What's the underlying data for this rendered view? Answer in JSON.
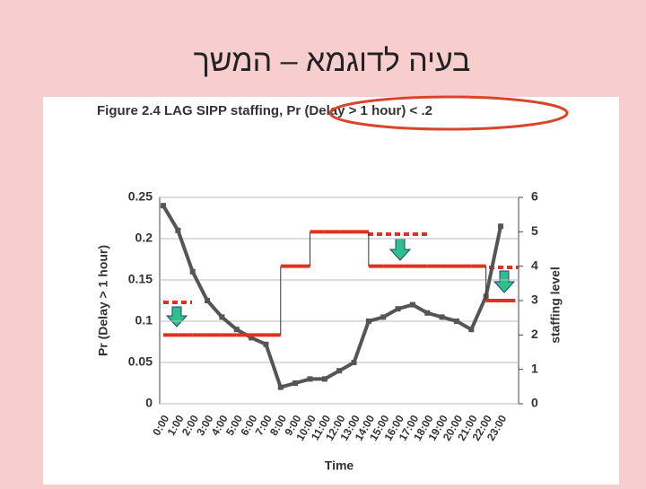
{
  "slide_title": "בעיה לדוגמא – המשך",
  "chart_data": {
    "type": "line",
    "title": "Figure 2.4  LAG SIPP staffing, Pr (Delay > 1 hour) < .2",
    "x_label": "Time",
    "y_label": "Pr (Delay > 1 hour)",
    "y2_label": "staffing level",
    "categories": [
      "0:00",
      "1:00",
      "2:00",
      "3:00",
      "4:00",
      "5:00",
      "6:00",
      "7:00",
      "8:00",
      "9:00",
      "10:00",
      "11:00",
      "12:00",
      "13:00",
      "14:00",
      "15:00",
      "16:00",
      "17:00",
      "18:00",
      "19:00",
      "20:00",
      "21:00",
      "22:00",
      "23:00"
    ],
    "series": [
      {
        "name": "Pr (Delay > 1 hour)",
        "color": "#555555",
        "values": [
          0.24,
          0.21,
          0.16,
          0.125,
          0.105,
          0.09,
          0.08,
          0.072,
          0.02,
          0.025,
          0.03,
          0.03,
          0.04,
          0.05,
          0.1,
          0.105,
          0.115,
          0.12,
          0.11,
          0.105,
          0.1,
          0.09,
          0.13,
          0.215
        ]
      },
      {
        "name": "staffing level",
        "color": "#e0301e",
        "axis": "y2",
        "values": [
          2,
          2,
          2,
          2,
          2,
          2,
          2,
          2,
          4,
          4,
          5,
          5,
          5,
          5,
          4,
          4,
          4,
          4,
          4,
          4,
          4,
          4,
          3,
          3
        ]
      }
    ],
    "ylim": [
      0,
      0.25
    ],
    "yticks": [
      0,
      0.05,
      0.1,
      0.15,
      0.2,
      0.25
    ],
    "y2lim": [
      0,
      6
    ],
    "y2ticks": [
      0,
      1,
      2,
      3,
      4,
      5,
      6
    ],
    "grid": true
  }
}
